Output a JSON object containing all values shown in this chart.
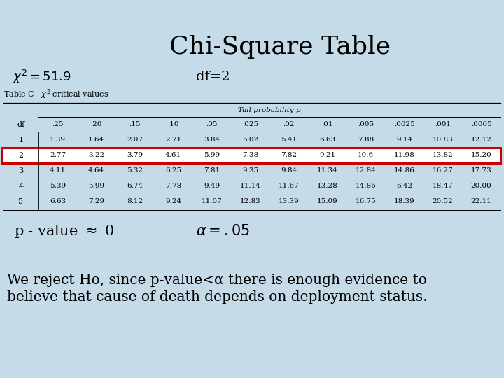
{
  "title": "Chi-Square Table",
  "bg_color": "#c5dce8",
  "title_fontsize": 26,
  "chi2_label": "$\\chi^2 = 51.9$",
  "df_label": "df=2",
  "table_header": "Table C   $\\chi^2$ critical values",
  "tail_prob_label": "Tail probability p",
  "col_headers": [
    ".25",
    ".20",
    ".15",
    ".10",
    ".05",
    ".025",
    ".02",
    ".01",
    ".005",
    ".0025",
    ".001",
    ".0005"
  ],
  "df_col": [
    "1",
    "2",
    "3",
    "4",
    "5"
  ],
  "row1": [
    "1.39",
    "1.64",
    "2.07",
    "2.71",
    "3.84",
    "5.02",
    "5.41",
    "6.63",
    "7.88",
    "9.14",
    "10.83",
    "12.12"
  ],
  "row2": [
    "2.77",
    "3.22",
    "3.79",
    "4.61",
    "5.99",
    "7.38",
    "7.82",
    "9.21",
    "10.6",
    "11.98",
    "13.82",
    "15.20"
  ],
  "row3": [
    "4.11",
    "4.64",
    "5.32",
    "6.25",
    "7.81",
    "9.35",
    "9.84",
    "11.34",
    "12.84",
    "14.86",
    "16.27",
    "17.73"
  ],
  "row4": [
    "5.39",
    "5.99",
    "6.74",
    "7.78",
    "9.49",
    "11.14",
    "11.67",
    "13.28",
    "14.86",
    "6.42",
    "18.47",
    "20.00"
  ],
  "row5": [
    "6.63",
    "7.29",
    "8.12",
    "9.24",
    "11.07",
    "12.83",
    "13.39",
    "15.09",
    "16.75",
    "18.39",
    "20.52",
    "22.11"
  ],
  "highlight_row_idx": 1,
  "highlight_color": "#cc0000",
  "pvalue_label": "p - value $\\approx$ 0",
  "alpha_label": "$\\alpha = .05$",
  "conclusion_line1": "We reject Ho, since p-value<α there is enough evidence to",
  "conclusion_line2": "believe that cause of death depends on deployment status.",
  "conclusion_fontsize": 14.5
}
